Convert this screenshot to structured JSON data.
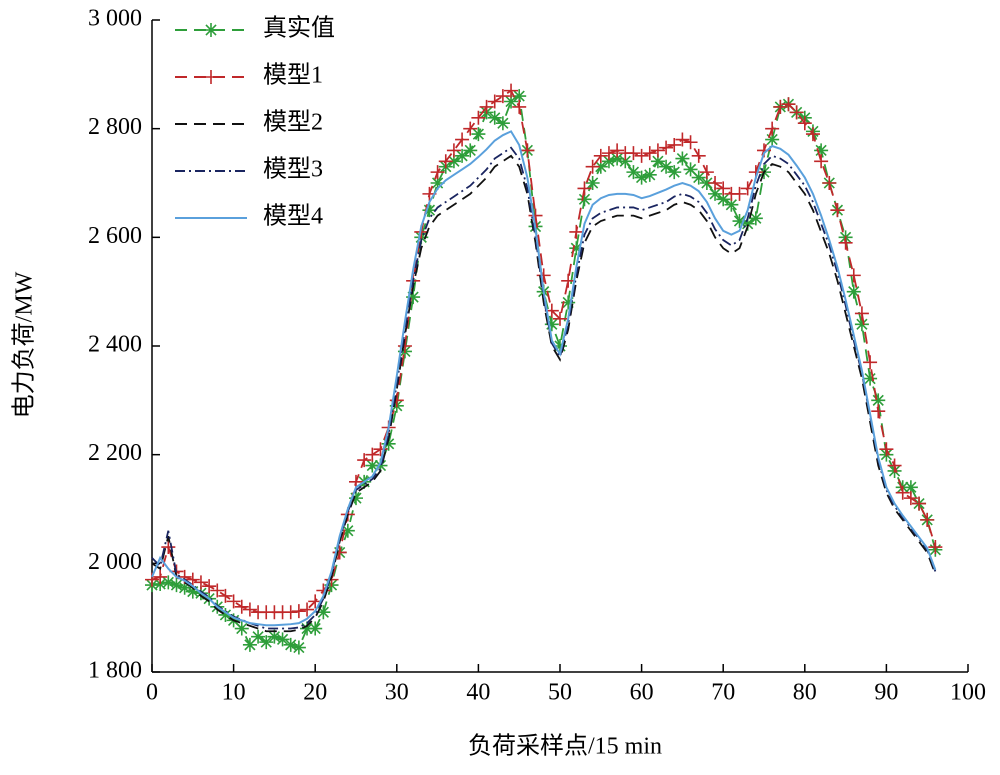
{
  "chart_data": {
    "type": "line",
    "x_label": "负荷采样点/15 min",
    "y_label": "电力负荷/MW",
    "x": [
      0,
      1,
      2,
      3,
      4,
      5,
      6,
      7,
      8,
      9,
      10,
      11,
      12,
      13,
      14,
      15,
      16,
      17,
      18,
      19,
      20,
      21,
      22,
      23,
      24,
      25,
      26,
      27,
      28,
      29,
      30,
      31,
      32,
      33,
      34,
      35,
      36,
      37,
      38,
      39,
      40,
      41,
      42,
      43,
      44,
      45,
      46,
      47,
      48,
      49,
      50,
      51,
      52,
      53,
      54,
      55,
      56,
      57,
      58,
      59,
      60,
      61,
      62,
      63,
      64,
      65,
      66,
      67,
      68,
      69,
      70,
      71,
      72,
      73,
      74,
      75,
      76,
      77,
      78,
      79,
      80,
      81,
      82,
      83,
      84,
      85,
      86,
      87,
      88,
      89,
      90,
      91,
      92,
      93,
      94,
      95,
      96
    ],
    "xlim": [
      0,
      100
    ],
    "xticks": [
      0,
      10,
      20,
      30,
      40,
      50,
      60,
      70,
      80,
      90,
      100
    ],
    "ylim": [
      1800,
      3000
    ],
    "yticks": [
      {
        "value": 1800,
        "label": "1 800"
      },
      {
        "value": 2000,
        "label": "2 000"
      },
      {
        "value": 2200,
        "label": "2 200"
      },
      {
        "value": 2400,
        "label": "2 400"
      },
      {
        "value": 2600,
        "label": "2 600"
      },
      {
        "value": 2800,
        "label": "2 800"
      },
      {
        "value": 3000,
        "label": "3 000"
      }
    ],
    "legend": "upper left",
    "series": [
      {
        "name": "真实值",
        "color": "#2e9e3a",
        "line_style": "dashed",
        "marker": "star",
        "values": [
          1960,
          1962,
          1965,
          1960,
          1955,
          1948,
          1945,
          1935,
          1920,
          1905,
          1895,
          1880,
          1850,
          1865,
          1855,
          1865,
          1860,
          1850,
          1845,
          1880,
          1880,
          1910,
          1960,
          2020,
          2060,
          2120,
          2150,
          2180,
          2180,
          2220,
          2290,
          2390,
          2490,
          2600,
          2650,
          2700,
          2730,
          2740,
          2750,
          2760,
          2790,
          2830,
          2820,
          2810,
          2850,
          2860,
          2760,
          2620,
          2500,
          2440,
          2400,
          2480,
          2580,
          2670,
          2700,
          2730,
          2740,
          2745,
          2740,
          2720,
          2710,
          2715,
          2740,
          2730,
          2720,
          2745,
          2725,
          2710,
          2700,
          2680,
          2670,
          2660,
          2630,
          2625,
          2635,
          2720,
          2780,
          2840,
          2845,
          2830,
          2820,
          2795,
          2760,
          2700,
          2650,
          2600,
          2500,
          2440,
          2340,
          2300,
          2200,
          2170,
          2140,
          2140,
          2110,
          2080,
          2025
        ]
      },
      {
        "name": "模型1",
        "color": "#c0282a",
        "line_style": "dashed",
        "marker": "plus",
        "values": [
          1970,
          1975,
          2030,
          1985,
          1975,
          1970,
          1965,
          1958,
          1950,
          1940,
          1930,
          1920,
          1915,
          1910,
          1910,
          1910,
          1910,
          1910,
          1912,
          1915,
          1930,
          1950,
          1970,
          2020,
          2090,
          2150,
          2190,
          2200,
          2210,
          2250,
          2300,
          2400,
          2520,
          2610,
          2680,
          2720,
          2740,
          2760,
          2780,
          2800,
          2820,
          2840,
          2850,
          2860,
          2870,
          2840,
          2760,
          2640,
          2530,
          2465,
          2450,
          2520,
          2610,
          2690,
          2730,
          2750,
          2755,
          2760,
          2755,
          2755,
          2750,
          2755,
          2760,
          2765,
          2770,
          2780,
          2775,
          2750,
          2720,
          2700,
          2690,
          2680,
          2680,
          2690,
          2720,
          2760,
          2800,
          2840,
          2845,
          2830,
          2810,
          2790,
          2740,
          2700,
          2650,
          2590,
          2530,
          2460,
          2370,
          2280,
          2210,
          2180,
          2130,
          2120,
          2110,
          2080,
          2030
        ]
      },
      {
        "name": "模型2",
        "color": "#111111",
        "line_style": "dashed",
        "marker": "none",
        "values": [
          2000,
          1990,
          2050,
          1975,
          1965,
          1955,
          1940,
          1930,
          1915,
          1905,
          1895,
          1890,
          1885,
          1880,
          1875,
          1875,
          1875,
          1875,
          1878,
          1885,
          1900,
          1930,
          1975,
          2040,
          2090,
          2130,
          2140,
          2150,
          2170,
          2230,
          2320,
          2420,
          2510,
          2580,
          2620,
          2640,
          2650,
          2660,
          2670,
          2680,
          2695,
          2710,
          2730,
          2740,
          2750,
          2730,
          2680,
          2590,
          2480,
          2400,
          2375,
          2430,
          2520,
          2590,
          2620,
          2630,
          2635,
          2640,
          2640,
          2640,
          2635,
          2640,
          2645,
          2650,
          2660,
          2665,
          2660,
          2650,
          2630,
          2600,
          2580,
          2570,
          2580,
          2620,
          2680,
          2720,
          2735,
          2730,
          2720,
          2700,
          2680,
          2650,
          2610,
          2570,
          2520,
          2460,
          2400,
          2340,
          2260,
          2180,
          2130,
          2100,
          2080,
          2060,
          2040,
          2020,
          1980
        ]
      },
      {
        "name": "模型3",
        "color": "#1a2560",
        "line_style": "dashdot",
        "marker": "none",
        "values": [
          2010,
          1995,
          2060,
          1980,
          1970,
          1960,
          1948,
          1938,
          1922,
          1912,
          1902,
          1896,
          1890,
          1885,
          1880,
          1880,
          1880,
          1880,
          1882,
          1890,
          1905,
          1935,
          1980,
          2045,
          2095,
          2135,
          2145,
          2155,
          2175,
          2240,
          2330,
          2430,
          2520,
          2595,
          2635,
          2655,
          2665,
          2675,
          2685,
          2695,
          2710,
          2725,
          2745,
          2755,
          2765,
          2745,
          2690,
          2600,
          2490,
          2405,
          2380,
          2440,
          2530,
          2605,
          2635,
          2645,
          2650,
          2655,
          2655,
          2655,
          2650,
          2655,
          2660,
          2665,
          2675,
          2680,
          2675,
          2665,
          2645,
          2615,
          2595,
          2585,
          2595,
          2635,
          2695,
          2735,
          2750,
          2745,
          2735,
          2715,
          2695,
          2665,
          2625,
          2585,
          2535,
          2475,
          2410,
          2350,
          2270,
          2190,
          2135,
          2105,
          2085,
          2065,
          2045,
          2025,
          1985
        ]
      },
      {
        "name": "模型4",
        "color": "#5aa0dc",
        "line_style": "solid",
        "marker": "none",
        "values": [
          1975,
          2010,
          1990,
          1975,
          1968,
          1958,
          1945,
          1935,
          1920,
          1910,
          1900,
          1895,
          1890,
          1888,
          1886,
          1886,
          1887,
          1888,
          1890,
          1898,
          1912,
          1940,
          1985,
          2050,
          2100,
          2140,
          2150,
          2160,
          2185,
          2250,
          2345,
          2445,
          2540,
          2620,
          2665,
          2690,
          2705,
          2715,
          2725,
          2735,
          2748,
          2762,
          2778,
          2788,
          2795,
          2770,
          2710,
          2615,
          2500,
          2410,
          2385,
          2450,
          2545,
          2625,
          2660,
          2672,
          2678,
          2680,
          2680,
          2678,
          2672,
          2676,
          2682,
          2688,
          2695,
          2700,
          2695,
          2685,
          2665,
          2635,
          2612,
          2605,
          2612,
          2650,
          2710,
          2755,
          2768,
          2763,
          2752,
          2732,
          2710,
          2680,
          2640,
          2595,
          2545,
          2485,
          2420,
          2355,
          2275,
          2195,
          2140,
          2110,
          2088,
          2068,
          2048,
          2028,
          1988
        ]
      }
    ]
  }
}
